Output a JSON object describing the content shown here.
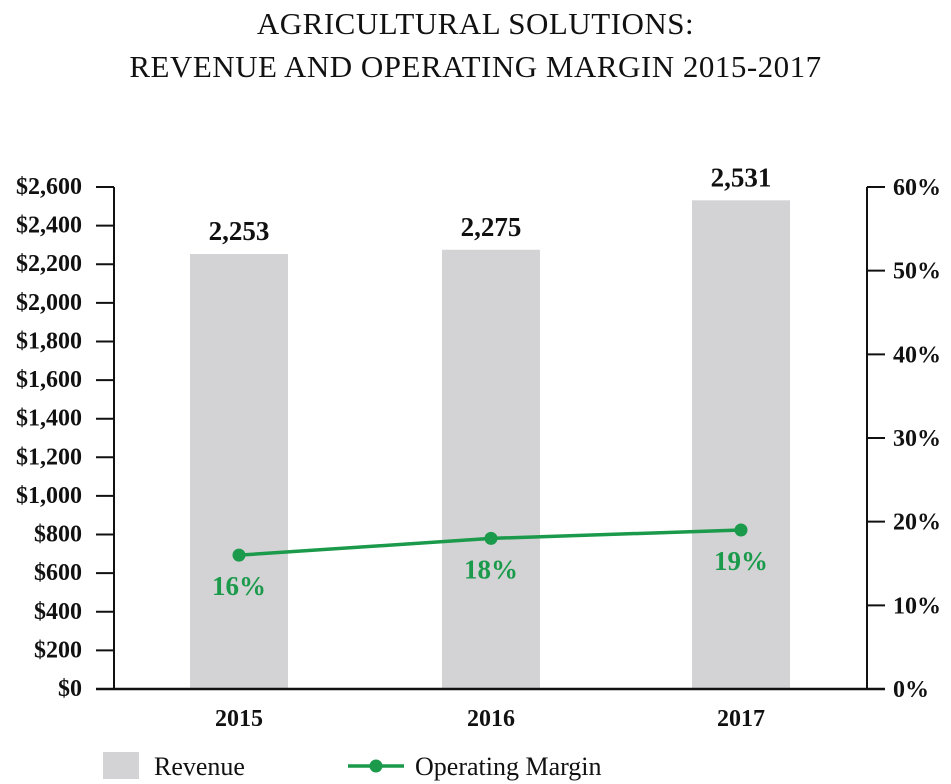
{
  "chart_data": {
    "type": "bar+line",
    "title": "AGRICULTURAL SOLUTIONS:\nREVENUE AND OPERATING MARGIN 2015-2017",
    "title_lines": [
      "AGRICULTURAL SOLUTIONS:",
      "REVENUE AND OPERATING MARGIN 2015-2017"
    ],
    "categories": [
      "2015",
      "2016",
      "2017"
    ],
    "series": [
      {
        "name": "Revenue",
        "type": "bar",
        "axis": "left",
        "values": [
          2253,
          2275,
          2531
        ],
        "labels": [
          "2,253",
          "2,275",
          "2,531"
        ],
        "color": "#d3d3d5"
      },
      {
        "name": "Operating Margin",
        "type": "line",
        "axis": "right",
        "values": [
          16,
          18,
          19
        ],
        "labels": [
          "16%",
          "18%",
          "19%"
        ],
        "color": "#1a9a4a"
      }
    ],
    "left_axis": {
      "ylim": [
        0,
        2600
      ],
      "ticks": [
        "$0",
        "$200",
        "$400",
        "$600",
        "$800",
        "$1,000",
        "$1,200",
        "$1,400",
        "$1,600",
        "$1,800",
        "$2,000",
        "$2,200",
        "$2,400",
        "$2,600"
      ]
    },
    "right_axis": {
      "ylim": [
        0,
        60
      ],
      "ticks": [
        "0%",
        "10%",
        "20%",
        "30%",
        "40%",
        "50%",
        "60%"
      ]
    },
    "grid": false,
    "legend_position": "bottom-left"
  }
}
